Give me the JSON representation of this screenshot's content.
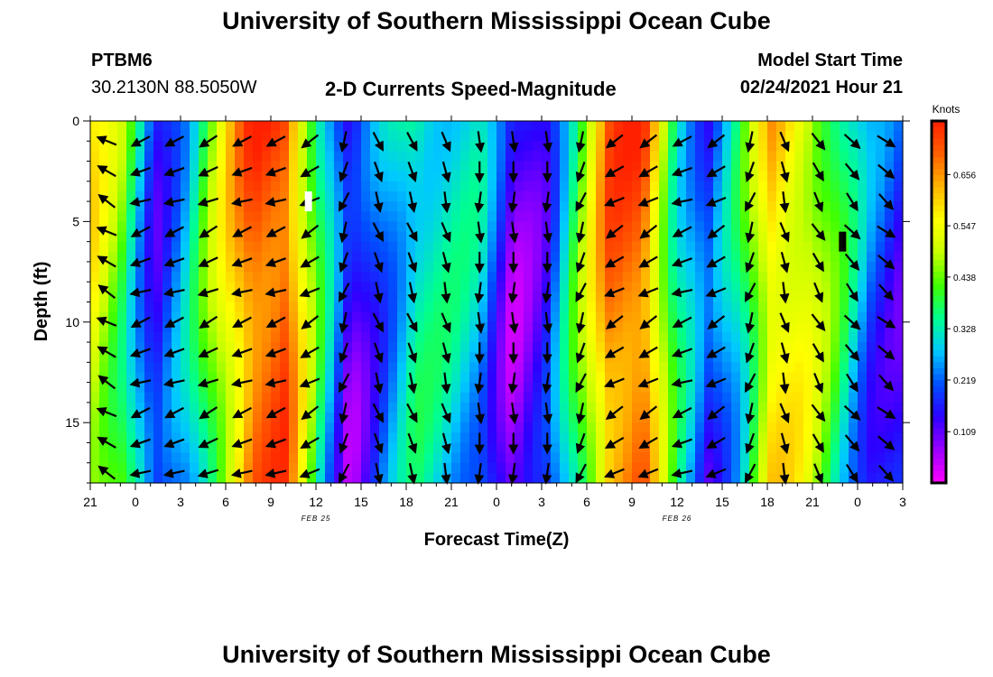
{
  "header": {
    "title": "University of Southern Mississippi Ocean Cube",
    "footer_title": "University of Southern Mississippi Ocean Cube",
    "station_id": "PTBM6",
    "station_coords": "30.2130N 88.5050W",
    "plot_title": "2-D Currents Speed-Magnitude",
    "model_start_label": "Model Start Time",
    "model_start_value": "02/24/2021 Hour 21"
  },
  "chart_data": {
    "type": "heatmap",
    "xlabel": "Forecast Time(Z)",
    "ylabel": "Depth (ft)",
    "x_start_hour": 21,
    "x_tick_labels": [
      "21",
      "0",
      "3",
      "6",
      "9",
      "12",
      "15",
      "18",
      "21",
      "0",
      "3",
      "6",
      "9",
      "12",
      "15",
      "18",
      "21",
      "0",
      "3"
    ],
    "date_labels": [
      {
        "text": "FEB 25",
        "at_tick": 5
      },
      {
        "text": "FEB 26",
        "at_tick": 13
      }
    ],
    "y_ticks": [
      0,
      5,
      10,
      15
    ],
    "ylim": [
      0,
      18
    ],
    "colorbar": {
      "unit": "Knots",
      "ticks": [
        "0.656",
        "0.547",
        "0.438",
        "0.328",
        "0.219",
        "0.109"
      ],
      "tick_values": [
        0.656,
        0.547,
        0.438,
        0.328,
        0.219,
        0.109
      ],
      "range": [
        0.0,
        0.77
      ],
      "colors": [
        "#ff00ff",
        "#9b00ff",
        "#2d00ff",
        "#0050ff",
        "#00c8ff",
        "#00ff90",
        "#40ff00",
        "#c8ff00",
        "#ffff00",
        "#ffb400",
        "#ff6000",
        "#ff2000"
      ]
    },
    "column_speeds_knots": [
      0.57,
      0.44,
      0.17,
      0.3,
      0.52,
      0.73,
      0.74,
      0.4,
      0.12,
      0.25,
      0.36,
      0.33,
      0.3,
      0.1,
      0.17,
      0.42,
      0.7,
      0.73,
      0.38,
      0.19,
      0.35,
      0.62,
      0.55,
      0.4,
      0.23,
      0.17
    ],
    "arrow_directions_deg": [
      300,
      250,
      250,
      245,
      250,
      250,
      240,
      200,
      160,
      160,
      165,
      180,
      180,
      180,
      200,
      240,
      240,
      250,
      240,
      200,
      165,
      150,
      140,
      130
    ],
    "markers": [
      {
        "label": "white",
        "hour_offset": 14.5,
        "depth_ft": 4.0,
        "color": "#ffffff"
      },
      {
        "label": "black",
        "hour_offset": 50.0,
        "depth_ft": 6.0,
        "color": "#000000"
      }
    ]
  }
}
